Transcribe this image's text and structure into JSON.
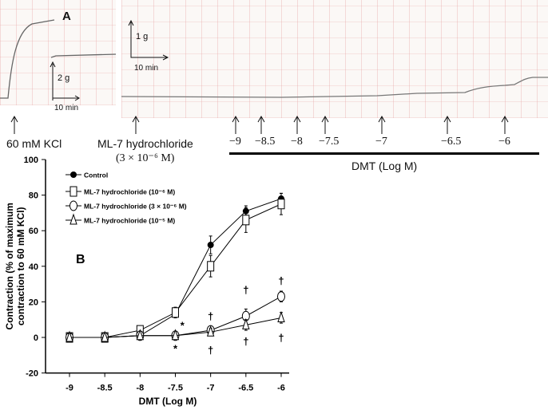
{
  "panel_a": {
    "label": "A",
    "kcl_label": "60 mM KCl",
    "ml7_label": "ML-7 hydrochloride",
    "ml7_conc": "(3 × 10⁻⁶ M)",
    "scale1_y": "2 g",
    "scale1_x": "10 min",
    "scale2_y": "1 g",
    "scale2_x": "10 min",
    "dose_labels": [
      "−9",
      "−8.5",
      "−8",
      "−7.5",
      "−7",
      "−6.5",
      "−6"
    ],
    "dmt_label": "DMT (Log M)"
  },
  "chart_data": {
    "type": "line",
    "panel_label": "B",
    "xlabel": "DMT (Log M)",
    "ylabel": "Contraction (% of maximum contraction to 60 mM KCl)",
    "ylabel_lines": [
      "Contraction (% of maximum",
      "contraction to 60 mM KCl)"
    ],
    "x": [
      -9,
      -8.5,
      -8,
      -7.5,
      -7,
      -6.5,
      -6
    ],
    "x_tick_labels": [
      "-9",
      "-8.5",
      "-8",
      "-7.5",
      "-7",
      "-6.5",
      "-6"
    ],
    "y_ticks": [
      -20,
      0,
      20,
      40,
      60,
      80,
      100
    ],
    "ylim": [
      -20,
      100
    ],
    "legend_placement": "top-left",
    "series": [
      {
        "name": "Control",
        "marker": "filled-circle",
        "values": [
          0,
          0,
          1,
          13,
          52,
          71,
          78
        ],
        "err": [
          2,
          1,
          1,
          2,
          5,
          3,
          3
        ]
      },
      {
        "name": "ML-7 hydrochloride (10⁻⁶ M)",
        "marker": "open-square",
        "values": [
          0,
          0,
          4,
          14,
          40,
          66,
          75
        ],
        "err": [
          2,
          1,
          1,
          3,
          6,
          7,
          6
        ]
      },
      {
        "name": "ML-7 hydrochloride (3 × 10⁻⁶ M)",
        "marker": "open-circle",
        "values": [
          0,
          0,
          1,
          1,
          4,
          12,
          23
        ],
        "err": [
          2,
          1,
          1,
          1,
          2,
          4,
          3
        ]
      },
      {
        "name": "ML-7 hydrochloride (10⁻⁵ M)",
        "marker": "open-triangle",
        "values": [
          0,
          0,
          1,
          1,
          3,
          7,
          11
        ],
        "err": [
          2,
          1,
          1,
          1,
          2,
          3,
          3
        ]
      }
    ],
    "annotations": [
      {
        "symbol": "*",
        "x": -7.4,
        "y": 7
      },
      {
        "symbol": "*",
        "x": -7.5,
        "y": -6
      },
      {
        "symbol": "†",
        "x": -7,
        "y": 12
      },
      {
        "symbol": "†",
        "x": -7,
        "y": -7
      },
      {
        "symbol": "†",
        "x": -6.5,
        "y": 27
      },
      {
        "symbol": "†",
        "x": -6.5,
        "y": -2
      },
      {
        "symbol": "†",
        "x": -6,
        "y": 32
      },
      {
        "symbol": "†",
        "x": -6,
        "y": 0
      }
    ]
  }
}
